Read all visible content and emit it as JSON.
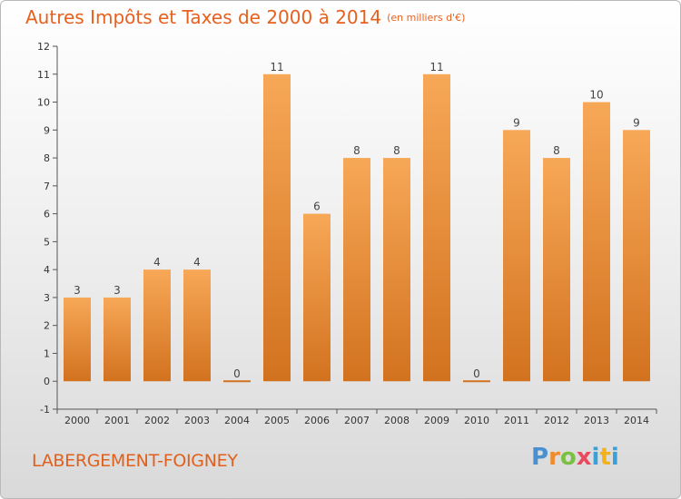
{
  "title": "Autres Impôts et Taxes de 2000 à 2014",
  "subtitle": "(en milliers d'€)",
  "commune": "LABERGEMENT-FOIGNEY",
  "logo": {
    "p": "P",
    "r": "r",
    "o": "o",
    "x": "x",
    "i": "i",
    "t": "t",
    "i2": "i"
  },
  "colors": {
    "bar_light": "#f7a857",
    "bar_dark": "#d2721f",
    "title": "#e8601e"
  },
  "chart_data": {
    "type": "bar",
    "categories": [
      "2000",
      "2001",
      "2002",
      "2003",
      "2004",
      "2005",
      "2006",
      "2007",
      "2008",
      "2009",
      "2010",
      "2011",
      "2012",
      "2013",
      "2014"
    ],
    "values": [
      3,
      3,
      4,
      4,
      0,
      11,
      6,
      8,
      8,
      11,
      0,
      9,
      8,
      10,
      9
    ],
    "ylim": [
      -1,
      12
    ],
    "yticks": [
      "-1",
      "0",
      "1",
      "2",
      "3",
      "4",
      "5",
      "6",
      "7",
      "8",
      "9",
      "10",
      "11",
      "12"
    ],
    "grid": false,
    "xlabel": "",
    "ylabel": ""
  }
}
